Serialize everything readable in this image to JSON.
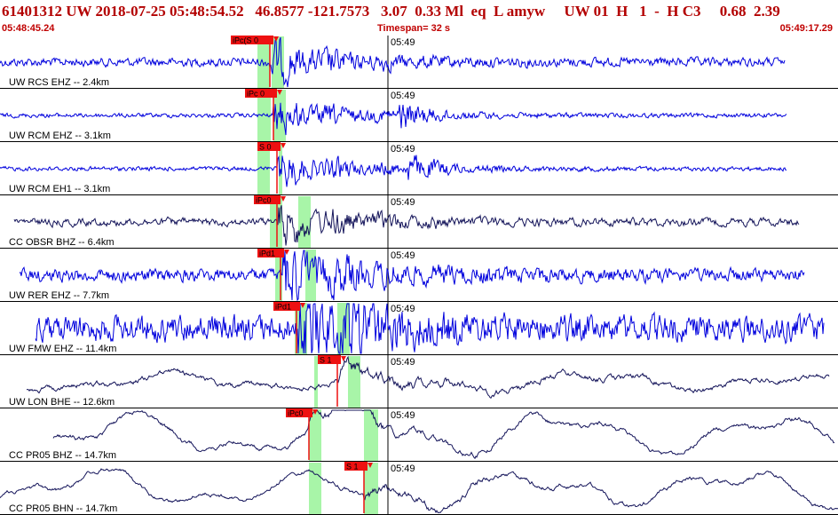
{
  "header": {
    "title": "61401312 UW 2018-07-25 05:48:54.52   46.8577 -121.7573   3.07  0.33 Ml  eq  L amyw     UW 01  H   1  -  H C3     0.68  2.39",
    "start_time": "05:48:45.24",
    "timespan": "Timespan=  32 s",
    "end_time": "05:49:17.29"
  },
  "colors": {
    "blue_trace": "#0000dd",
    "navy_trace": "#14145a",
    "pick_bg": "#ee1111",
    "window": "#a8f5a8",
    "title": "#b30000"
  },
  "tick_label": "05:49",
  "channels": [
    {
      "label": "UW RCS EHZ -- 2.4km",
      "color": "blue",
      "pick": "iPc(S 0",
      "arr": 304,
      "amp": 16,
      "freq": 1.0,
      "smooth": 0.55,
      "s_start": 320,
      "bg_amp": 4
    },
    {
      "label": "UW RCM EHZ -- 3.1km",
      "color": "blue",
      "pick": "iPc 0",
      "arr": 308,
      "amp": 14,
      "freq": 1.0,
      "smooth": 0.55,
      "s_start": 450,
      "bg_amp": 2
    },
    {
      "label": "UW RCM EH1 -- 3.1km",
      "color": "blue",
      "pick": "S 0",
      "arr": 312,
      "amp": 14,
      "freq": 1.0,
      "smooth": 0.55,
      "s_start": 460,
      "bg_amp": 2
    },
    {
      "label": "CC OBSR BHZ -- 6.4km",
      "color": "navy",
      "pick": "iPc0",
      "arr": 312,
      "amp": 24,
      "freq": 1.0,
      "smooth": 0.35,
      "s_start": 340,
      "bg_amp": 5
    },
    {
      "label": "UW RER EHZ -- 7.7km",
      "color": "blue",
      "pick": "iPd1",
      "arr": 316,
      "amp": 24,
      "freq": 1.0,
      "smooth": 0.55,
      "s_start": 350,
      "bg_amp": 6
    },
    {
      "label": "UW FMW EHZ -- 11.4km",
      "color": "blue",
      "pick": "iPd1",
      "arr": 334,
      "amp": 26,
      "freq": 1.0,
      "smooth": 0.55,
      "s_start": 390,
      "bg_amp": 12
    },
    {
      "label": "UW LON BHE -- 12.6km",
      "color": "navy",
      "pick": "S 1",
      "arr": 380,
      "amp": 20,
      "freq": 0.3,
      "smooth": 0.15,
      "s_start": 380,
      "bg_amp": 8
    },
    {
      "label": "CC PR05 BHZ -- 14.7km",
      "color": "navy",
      "pick": "iPc0",
      "arr": 348,
      "amp": 26,
      "freq": 0.1,
      "smooth": 0.06,
      "s_start": 410,
      "bg_amp": 18
    },
    {
      "label": "CC PR05 BHN -- 14.7km",
      "color": "navy",
      "pick": "S 1",
      "arr": 410,
      "amp": 26,
      "freq": 0.1,
      "smooth": 0.06,
      "s_start": 410,
      "bg_amp": 16
    }
  ]
}
